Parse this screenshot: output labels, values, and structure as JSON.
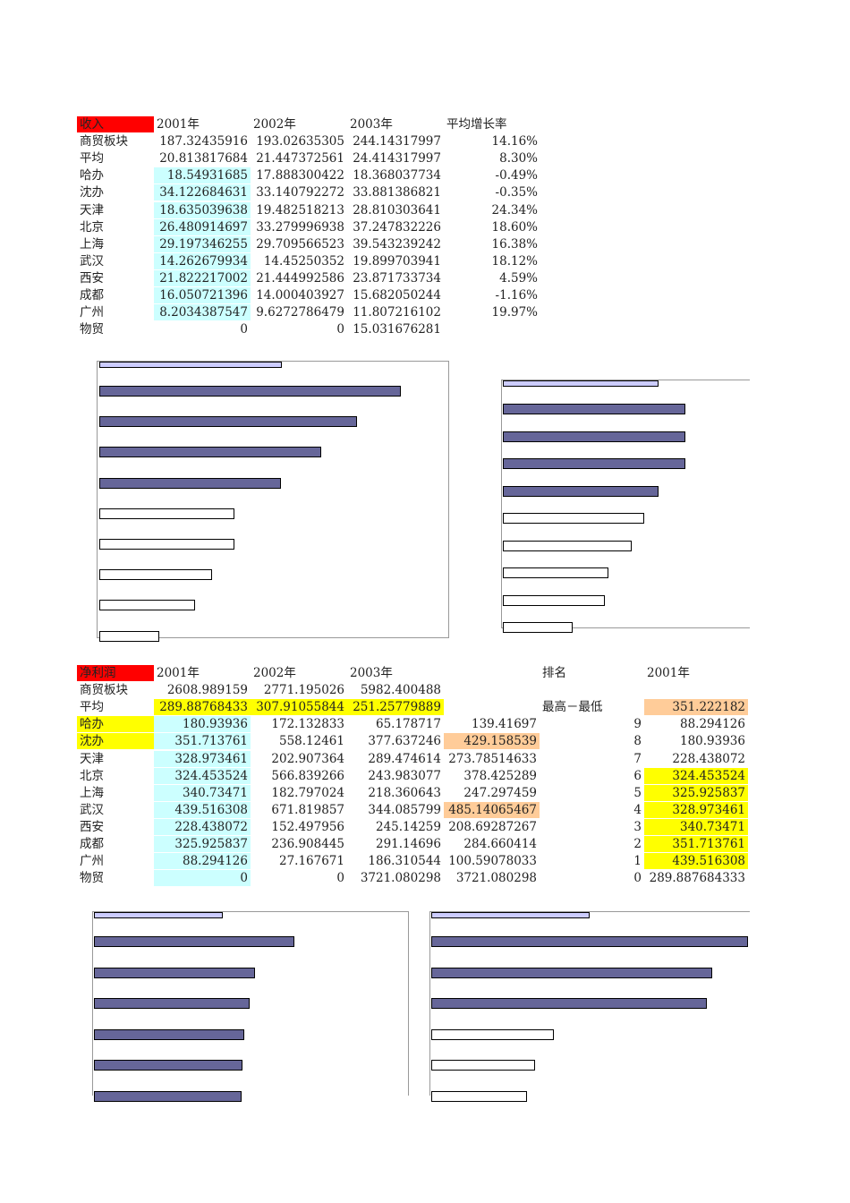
{
  "revenue": {
    "header": {
      "label": "收入",
      "y2001": "2001年",
      "y2002": "2002年",
      "y2003": "2003年",
      "growth": "平均增长率"
    },
    "rows": [
      {
        "name": "商贸板块",
        "y2001": "187.32435916",
        "y2002": "193.02635305",
        "y2003": "244.14317997",
        "growth": "14.16%"
      },
      {
        "name": "平均",
        "y2001": "20.813817684",
        "y2002": "21.447372561",
        "y2003": "24.414317997",
        "growth": "8.30%"
      },
      {
        "name": "哈办",
        "y2001": "18.54931685",
        "y2002": "17.888300422",
        "y2003": "18.368037734",
        "growth": "-0.49%"
      },
      {
        "name": "沈办",
        "y2001": "34.122684631",
        "y2002": "33.140792272",
        "y2003": "33.881386821",
        "growth": "-0.35%"
      },
      {
        "name": "天津",
        "y2001": "18.635039638",
        "y2002": "19.482518213",
        "y2003": "28.810303641",
        "growth": "24.34%"
      },
      {
        "name": "北京",
        "y2001": "26.480914697",
        "y2002": "33.279996938",
        "y2003": "37.247832226",
        "growth": "18.60%"
      },
      {
        "name": "上海",
        "y2001": "29.197346255",
        "y2002": "29.709566523",
        "y2003": "39.543239242",
        "growth": "16.38%"
      },
      {
        "name": "武汉",
        "y2001": "14.262679934",
        "y2002": "14.45250352",
        "y2003": "19.899703941",
        "growth": "18.12%"
      },
      {
        "name": "西安",
        "y2001": "21.822217002",
        "y2002": "21.444992586",
        "y2003": "23.871733734",
        "growth": "4.59%"
      },
      {
        "name": "成都",
        "y2001": "16.050721396",
        "y2002": "14.000403927",
        "y2003": "15.682050244",
        "growth": "-1.16%"
      },
      {
        "name": "广州",
        "y2001": "8.2034387547",
        "y2002": "9.6272786479",
        "y2003": "11.807216102",
        "growth": "19.97%"
      },
      {
        "name": "物贸",
        "y2001": "0",
        "y2002": "0",
        "y2003": "15.031676281",
        "growth": ""
      }
    ]
  },
  "profit": {
    "header": {
      "label": "净利润",
      "y2001": "2001年",
      "y2002": "2002年",
      "y2003": "2003年",
      "rank": "排名",
      "rank_year": "2001年"
    },
    "rows": [
      {
        "name": "商贸板块",
        "y2001": "2608.989159",
        "y2002": "2771.195026",
        "y2003": "5982.400488",
        "col4": "",
        "rlabel": "",
        "rnum": "",
        "rval": ""
      },
      {
        "name": "平均",
        "y2001": "289.88768433",
        "y2002": "307.91055844",
        "y2003": "251.25779889",
        "col4": "",
        "rlabel": "最高－最低",
        "rnum": "",
        "rval": "351.222182"
      },
      {
        "name": "哈办",
        "y2001": "180.93936",
        "y2002": "172.132833",
        "y2003": "65.178717",
        "col4": "139.41697",
        "rlabel": "",
        "rnum": "9",
        "rval": "88.294126"
      },
      {
        "name": "沈办",
        "y2001": "351.713761",
        "y2002": "558.12461",
        "y2003": "377.637246",
        "col4": "429.158539",
        "rlabel": "",
        "rnum": "8",
        "rval": "180.93936"
      },
      {
        "name": "天津",
        "y2001": "328.973461",
        "y2002": "202.907364",
        "y2003": "289.474614",
        "col4": "273.78514633",
        "rlabel": "",
        "rnum": "7",
        "rval": "228.438072"
      },
      {
        "name": "北京",
        "y2001": "324.453524",
        "y2002": "566.839266",
        "y2003": "243.983077",
        "col4": "378.425289",
        "rlabel": "",
        "rnum": "6",
        "rval": "324.453524"
      },
      {
        "name": "上海",
        "y2001": "340.73471",
        "y2002": "182.797024",
        "y2003": "218.360643",
        "col4": "247.297459",
        "rlabel": "",
        "rnum": "5",
        "rval": "325.925837"
      },
      {
        "name": "武汉",
        "y2001": "439.516308",
        "y2002": "671.819857",
        "y2003": "344.085799",
        "col4": "485.14065467",
        "rlabel": "",
        "rnum": "4",
        "rval": "328.973461"
      },
      {
        "name": "西安",
        "y2001": "228.438072",
        "y2002": "152.497956",
        "y2003": "245.14259",
        "col4": "208.69287267",
        "rlabel": "",
        "rnum": "3",
        "rval": "340.73471"
      },
      {
        "name": "成都",
        "y2001": "325.925837",
        "y2002": "236.908445",
        "y2003": "291.14696",
        "col4": "284.660414",
        "rlabel": "",
        "rnum": "2",
        "rval": "351.713761"
      },
      {
        "name": "广州",
        "y2001": "88.294126",
        "y2002": "27.167671",
        "y2003": "186.310544",
        "col4": "100.59078033",
        "rlabel": "",
        "rnum": "1",
        "rval": "439.516308"
      },
      {
        "name": "物贸",
        "y2001": "0",
        "y2002": "0",
        "y2003": "3721.080298",
        "col4": "3721.080298",
        "rlabel": "",
        "rnum": "0",
        "rval": "289.887684333"
      }
    ]
  },
  "colors": {
    "header_red": "#ff0000",
    "cyan": "#ccffff",
    "yellow": "#ffff00",
    "orange": "#ffcc99",
    "bar_blue": "#666699",
    "bar_lavender": "#ccccff"
  },
  "chart_data": [
    {
      "type": "bar",
      "orientation": "horizontal",
      "title": "",
      "axis_max": 36,
      "values": [
        18.8,
        31.1,
        26.6,
        22.9,
        18.7,
        13.9,
        13.9,
        11.6,
        9.9,
        6.2
      ],
      "fills": [
        "lavender",
        "blue",
        "blue",
        "blue",
        "blue",
        "white",
        "white",
        "white",
        "white",
        "white"
      ]
    },
    {
      "type": "bar",
      "orientation": "horizontal",
      "title": "",
      "axis_max": 34,
      "values": [
        21.6,
        25.3,
        25.3,
        25.3,
        21.6,
        19.6,
        17.9,
        14.6,
        14.1,
        9.7
      ],
      "fills": [
        "lavender",
        "blue",
        "blue",
        "blue",
        "blue",
        "white",
        "white",
        "white",
        "white",
        "white"
      ]
    },
    {
      "type": "bar",
      "orientation": "horizontal",
      "title": "",
      "axis_max": 485,
      "values": [
        200,
        310,
        249,
        241,
        233,
        230,
        229
      ],
      "fills": [
        "lavender",
        "blue",
        "blue",
        "blue",
        "blue",
        "blue",
        "blue"
      ]
    },
    {
      "type": "bar",
      "orientation": "horizontal",
      "title": "",
      "axis_max": 590,
      "values": [
        295,
        590,
        524,
        514,
        229,
        194,
        178
      ],
      "fills": [
        "lavender",
        "blue",
        "blue",
        "blue",
        "white",
        "white",
        "white"
      ]
    }
  ]
}
